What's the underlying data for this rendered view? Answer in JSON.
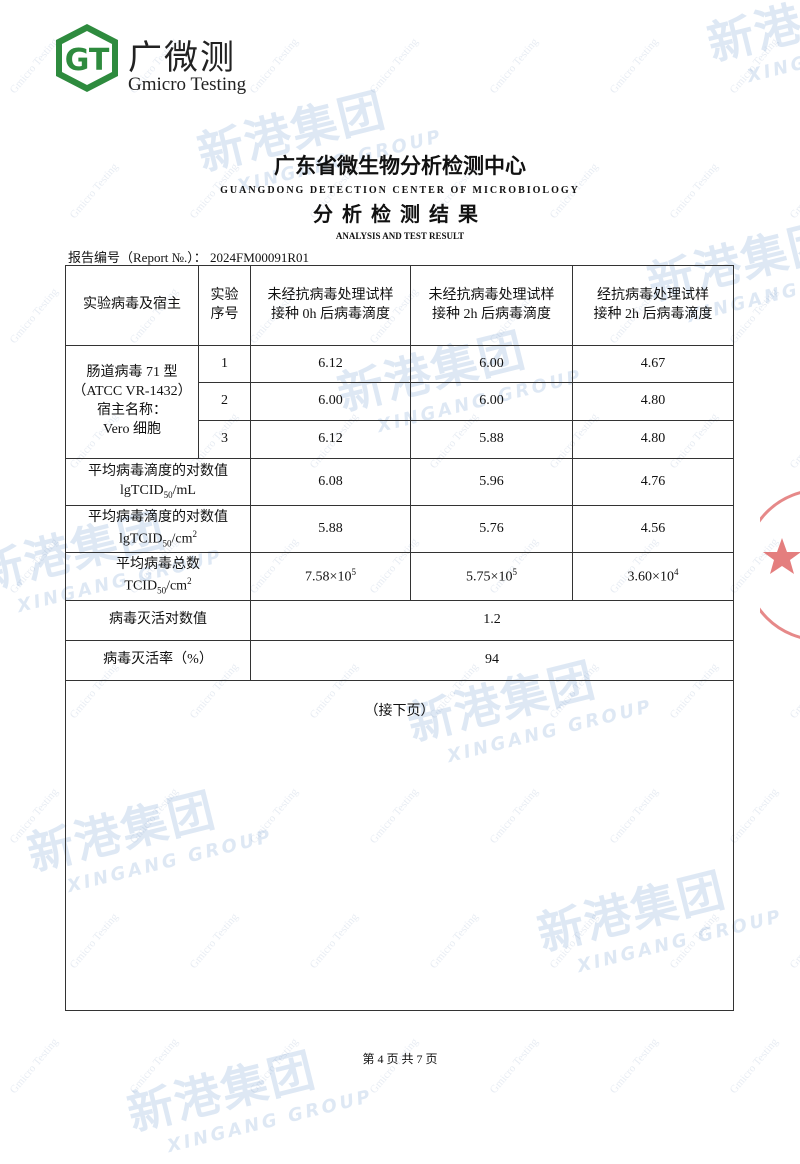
{
  "logo": {
    "mark": "GT",
    "name": "广微测",
    "subtitle": "Gmicro Testing"
  },
  "header": {
    "title": "广东省微生物分析检测中心",
    "title_en": "GUANGDONG DETECTION CENTER OF MICROBIOLOGY",
    "subtitle": "分析检测结果",
    "subtitle_en": "ANALYSIS AND TEST RESULT"
  },
  "report": {
    "label": "报告编号（Report №.）：",
    "number": "2024FM00091R01"
  },
  "table": {
    "headers": [
      [
        "实验病毒及宿主"
      ],
      [
        "实验",
        "序号"
      ],
      [
        "未经抗病毒处理试样",
        "接种 0h 后病毒滴度"
      ],
      [
        "未经抗病毒处理试样",
        "接种 2h 后病毒滴度"
      ],
      [
        "经抗病毒处理试样",
        "接种 2h 后病毒滴度"
      ]
    ],
    "virus": [
      "肠道病毒 71 型",
      "（ATCC VR-1432）",
      "宿主名称：",
      "Vero 细胞"
    ],
    "rows": [
      [
        "1",
        "6.12",
        "6.00",
        "4.67"
      ],
      [
        "2",
        "6.00",
        "6.00",
        "4.80"
      ],
      [
        "3",
        "6.12",
        "5.88",
        "4.80"
      ]
    ],
    "mean_ml": {
      "label": "平均病毒滴度的对数值",
      "unit": [
        "lgTCID",
        "50",
        "/mL"
      ],
      "values": [
        "6.08",
        "5.96",
        "4.76"
      ]
    },
    "mean_cm2": {
      "label": "平均病毒滴度的对数值",
      "unit": [
        "lgTCID",
        "50",
        "/cm",
        "2"
      ],
      "values": [
        "5.88",
        "5.76",
        "4.56"
      ]
    },
    "total": {
      "label": "平均病毒总数",
      "unit": [
        "TCID",
        "50",
        "/cm",
        "2"
      ],
      "values": [
        [
          "7.58×10",
          "5"
        ],
        [
          "5.75×10",
          "5"
        ],
        [
          "3.60×10",
          "4"
        ]
      ]
    },
    "inactivation_log": {
      "label": "病毒灭活对数值",
      "value": "1.2"
    },
    "inactivation_rate": {
      "label": "病毒灭活率（%）",
      "value": "94"
    },
    "continued": "（接下页）"
  },
  "footer": "第 4 页 共 7 页",
  "watermark": {
    "text": "新港集团",
    "text_en": "XINGANG GROUP",
    "brand": "Gmicro Testing"
  }
}
